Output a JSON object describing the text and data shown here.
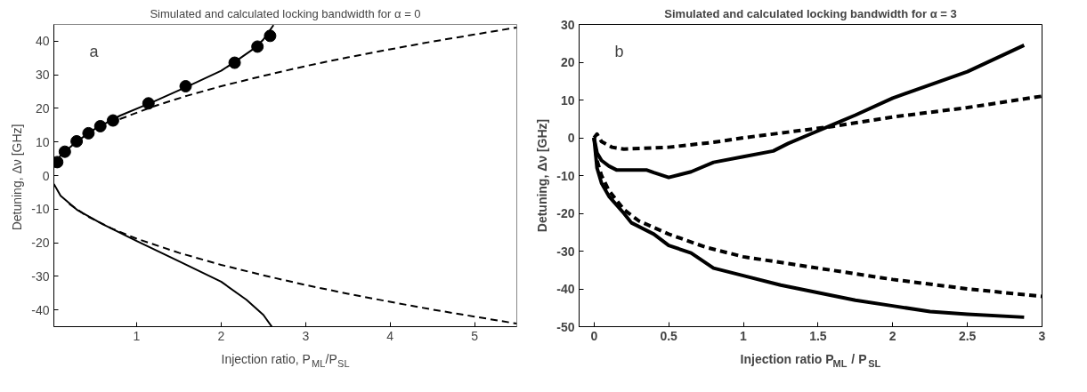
{
  "chart_data": [
    {
      "type": "line",
      "title": "Simulated and calculated locking bandwidth for α = 0",
      "xlabel": "Injection ratio, P$_{ML}$/P$_{SL}$",
      "ylabel": "Detuning, Δν  [GHz]",
      "annotations": [
        "a"
      ],
      "xlim": [
        0.02,
        5.5
      ],
      "ylim": [
        -45,
        45
      ],
      "xticks": [
        1,
        2,
        3,
        4,
        5
      ],
      "yticks": [
        -40,
        -30,
        -20,
        -10,
        0,
        10,
        20,
        30,
        40
      ],
      "grid": false,
      "series": [
        {
          "color": "#000000",
          "line_style": "solid",
          "x": [
            0.02,
            0.1,
            0.3,
            0.5,
            0.8,
            1.2,
            1.6,
            2.0,
            2.2,
            2.4,
            2.5,
            2.62
          ],
          "values": [
            2.5,
            6,
            10.3,
            13.8,
            17.8,
            22,
            26.5,
            31.2,
            34.5,
            38,
            40.5,
            44.8
          ]
        },
        {
          "color": "#000000",
          "line_style": "solid",
          "x": [
            0.02,
            0.1,
            0.3,
            0.6,
            1.0,
            1.5,
            2.0,
            2.3,
            2.5,
            2.6
          ],
          "values": [
            -2.5,
            -6,
            -10.3,
            -14.5,
            -19.5,
            -25.5,
            -31.6,
            -37,
            -41.5,
            -45
          ]
        },
        {
          "color": "#000000",
          "line_style": "dashed",
          "x": [
            0.8,
            1.2,
            1.6,
            2.0,
            2.5,
            3.0,
            3.5,
            4.0,
            4.5,
            5.0,
            5.5
          ],
          "values": [
            16.8,
            20.6,
            23.8,
            26.6,
            29.7,
            32.6,
            35.2,
            37.6,
            39.9,
            42,
            44.1
          ]
        },
        {
          "color": "#000000",
          "line_style": "dashed",
          "x": [
            0.2,
            0.4,
            0.7,
            1.0,
            1.5,
            2.0,
            2.5,
            3.0,
            3.5,
            4.0,
            4.5,
            5.0,
            5.5
          ],
          "values": [
            -8.4,
            -11.9,
            -15.7,
            -18.8,
            -23,
            -26.6,
            -29.7,
            -32.6,
            -35.2,
            -37.6,
            -39.9,
            -42,
            -44.1
          ]
        },
        {
          "type": "scatter",
          "color": "#000000",
          "marker": "circle",
          "x": [
            0.06,
            0.15,
            0.29,
            0.43,
            0.57,
            0.72,
            1.14,
            1.58,
            2.16,
            2.43,
            2.58
          ],
          "values": [
            4,
            7.1,
            10.2,
            12.6,
            14.7,
            16.4,
            21.5,
            26.6,
            33.6,
            38.4,
            41.6
          ]
        }
      ]
    },
    {
      "type": "line",
      "title": "Simulated and calculated locking bandwidth for α = 3",
      "xlabel": "Injection ratio P$_{ML}$ / P$_{SL}$",
      "ylabel": "Detuning, Δν [GHz]",
      "annotations": [
        "b"
      ],
      "xlim": [
        -0.1,
        3
      ],
      "ylim": [
        -50,
        30
      ],
      "xticks": [
        0,
        0.5,
        1,
        1.5,
        2,
        2.5,
        3
      ],
      "yticks": [
        -50,
        -40,
        -30,
        -20,
        -10,
        0,
        10,
        20,
        30
      ],
      "grid": false,
      "series": [
        {
          "color": "#000000",
          "line_style": "solid",
          "x": [
            0,
            0.02,
            0.05,
            0.1,
            0.15,
            0.35,
            0.4,
            0.5,
            0.65,
            0.8,
            1.0,
            1.2,
            1.3,
            1.45,
            1.6,
            1.75,
            2.0,
            2.5,
            2.88
          ],
          "values": [
            0,
            -4,
            -6,
            -7.5,
            -8.5,
            -8.5,
            -9.2,
            -10.5,
            -9,
            -6.5,
            -5,
            -3.5,
            -1.5,
            1,
            3.5,
            6,
            10.5,
            17.5,
            24.5
          ]
        },
        {
          "color": "#000000",
          "line_style": "dashed",
          "x": [
            0,
            0.02,
            0.05,
            0.12,
            0.2,
            0.5,
            0.8,
            1.0,
            1.3,
            1.6,
            2.0,
            2.5,
            3.0
          ],
          "values": [
            0,
            1,
            -1,
            -2.5,
            -3,
            -2.5,
            -1.2,
            0,
            1.5,
            3,
            5.5,
            8,
            11
          ]
        },
        {
          "color": "#000000",
          "line_style": "solid",
          "x": [
            0,
            0.02,
            0.05,
            0.1,
            0.2,
            0.25,
            0.4,
            0.5,
            0.65,
            0.8,
            1.0,
            1.25,
            1.5,
            1.75,
            2.0,
            2.25,
            2.5,
            2.88
          ],
          "values": [
            0,
            -8,
            -12,
            -15.5,
            -20,
            -22.5,
            -25.5,
            -28.5,
            -30.5,
            -34.5,
            -36.5,
            -39,
            -41,
            -43,
            -44.5,
            -46,
            -46.7,
            -47.5
          ]
        },
        {
          "color": "#000000",
          "line_style": "dashed",
          "x": [
            0,
            0.02,
            0.05,
            0.1,
            0.2,
            0.3,
            0.5,
            0.75,
            1.0,
            1.5,
            2.0,
            2.5,
            3.0
          ],
          "values": [
            0,
            -6,
            -10,
            -14,
            -19,
            -22,
            -25.5,
            -29,
            -31.5,
            -34.5,
            -37.5,
            -40,
            -42
          ]
        }
      ]
    }
  ]
}
